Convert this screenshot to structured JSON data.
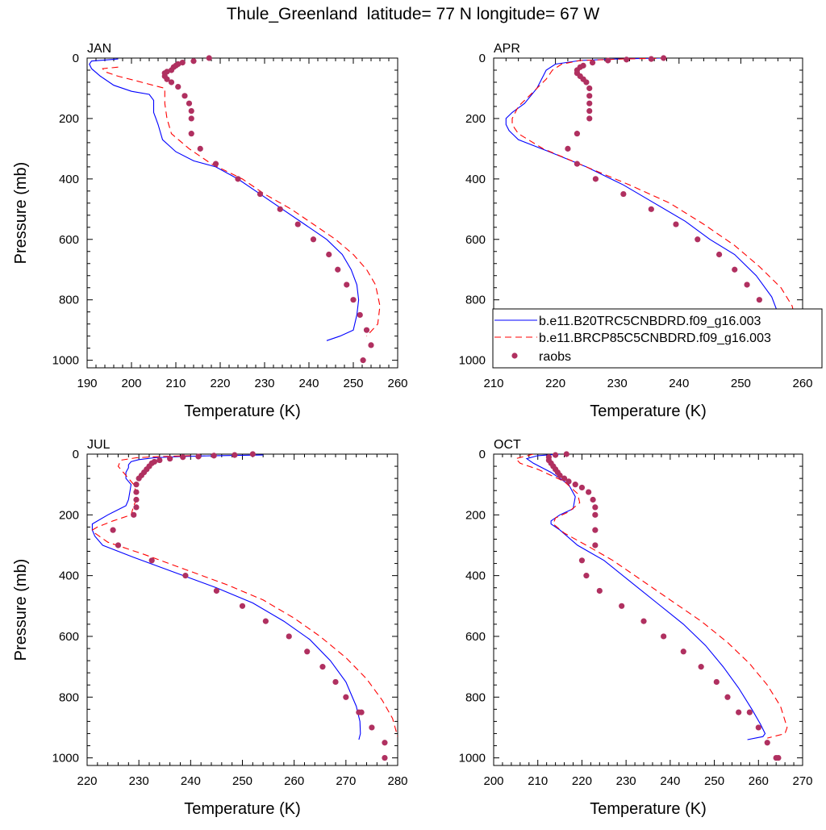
{
  "figure": {
    "title": "Thule_Greenland  latitude= 77 N longitude= 67 W"
  },
  "legend": {
    "placement": "inside APR panel, lower right",
    "entries": [
      {
        "label": "b.e11.B20TRC5CNBDRD.f09_g16.003",
        "style": "solid",
        "color": "#0000ff"
      },
      {
        "label": "b.e11.BRCP85C5CNBDRD.f09_g16.003",
        "style": "dashed",
        "color": "#ff0000"
      },
      {
        "label": "raobs",
        "style": "marker",
        "color": "#b03060"
      }
    ]
  },
  "chart_data": [
    {
      "type": "line",
      "panel": "JAN",
      "title": "JAN",
      "xlabel": "Temperature (K)",
      "ylabel": "Pressure (mb)",
      "xlim": [
        190,
        260
      ],
      "ylim": [
        1025,
        0
      ],
      "xticks": [
        190,
        200,
        210,
        220,
        230,
        240,
        250,
        260
      ],
      "yticks": [
        0,
        200,
        400,
        600,
        800,
        1000
      ],
      "grid": false,
      "series": [
        {
          "name": "b.e11.B20TRC5CNBDRD.f09_g16.003",
          "style": "solid",
          "color": "#0000ff",
          "x": [
            197,
            191,
            190.5,
            191,
            193,
            196,
            200,
            204,
            205,
            205,
            205.5,
            206,
            207,
            210,
            214,
            219,
            224,
            229,
            234,
            239,
            244,
            247.5,
            249.5,
            250.8,
            251.2,
            250.8,
            250,
            247,
            244
          ],
          "y": [
            3,
            10,
            20,
            35,
            60,
            90,
            110,
            120,
            140,
            180,
            200,
            220,
            270,
            310,
            340,
            360,
            400,
            450,
            500,
            550,
            600,
            650,
            700,
            750,
            800,
            850,
            900,
            920,
            935
          ]
        },
        {
          "name": "b.e11.BRCP85C5CNBDRD.f09_g16.003",
          "style": "dashed",
          "color": "#ff0000",
          "x": [
            197,
            193.5,
            194,
            197,
            201,
            207.5,
            207.5,
            208,
            209,
            213,
            218,
            225,
            230,
            236,
            241,
            246,
            250,
            253,
            255,
            256,
            255.5,
            253
          ],
          "y": [
            30,
            35,
            45,
            60,
            75,
            100,
            150,
            200,
            250,
            300,
            350,
            400,
            450,
            500,
            550,
            600,
            650,
            700,
            750,
            820,
            880,
            920
          ]
        },
        {
          "name": "raobs",
          "style": "marker",
          "color": "#b03060",
          "x": [
            217.5,
            214,
            211.5,
            210.5,
            210,
            209.5,
            209,
            208,
            207.5,
            207.5,
            208,
            209,
            210.5,
            212,
            213,
            213.5,
            213.5,
            213.5,
            215.5,
            219,
            224,
            229,
            233.5,
            237.5,
            241,
            244.5,
            246.5,
            248.5,
            250,
            251.5,
            253,
            254,
            252.2
          ],
          "y": [
            0,
            10,
            15,
            20,
            25,
            30,
            40,
            45,
            50,
            60,
            70,
            80,
            95,
            125,
            150,
            175,
            200,
            250,
            300,
            350,
            400,
            450,
            500,
            550,
            600,
            650,
            700,
            750,
            800,
            850,
            900,
            950,
            1000
          ]
        }
      ]
    },
    {
      "type": "line",
      "panel": "APR",
      "title": "APR",
      "xlabel": "Temperature (K)",
      "ylabel": "",
      "xlim": [
        210,
        260
      ],
      "ylim": [
        1025,
        0
      ],
      "xticks": [
        210,
        220,
        230,
        240,
        250,
        260
      ],
      "yticks": [
        0,
        200,
        400,
        600,
        800,
        1000
      ],
      "grid": false,
      "series": [
        {
          "name": "b.e11.B20TRC5CNBDRD.f09_g16.003",
          "style": "solid",
          "color": "#0000ff",
          "x": [
            237,
            230,
            224,
            220,
            218.5,
            218,
            217,
            215,
            213,
            212,
            212,
            212.5,
            214,
            219,
            225,
            231,
            236,
            241,
            245,
            249,
            252.5,
            255,
            256.3,
            256,
            254
          ],
          "y": [
            0,
            3,
            8,
            20,
            40,
            60,
            100,
            150,
            180,
            200,
            220,
            240,
            270,
            310,
            360,
            420,
            480,
            540,
            600,
            650,
            720,
            790,
            860,
            910,
            935
          ]
        },
        {
          "name": "b.e11.BRCP85C5CNBDRD.f09_g16.003",
          "style": "dashed",
          "color": "#ff0000",
          "x": [
            238,
            231,
            224,
            221,
            219.5,
            218.5,
            216,
            214,
            213,
            213,
            214,
            218,
            225,
            232,
            238.5,
            244,
            249,
            253,
            256.5,
            258.3,
            259
          ],
          "y": [
            0,
            3,
            8,
            20,
            40,
            70,
            120,
            160,
            200,
            220,
            250,
            300,
            360,
            420,
            480,
            550,
            620,
            690,
            760,
            820,
            880
          ]
        },
        {
          "name": "raobs",
          "style": "marker",
          "color": "#b03060",
          "x": [
            237.5,
            235.5,
            231.5,
            228.5,
            226,
            224.5,
            224,
            223.5,
            223.5,
            224,
            224.5,
            225,
            225.5,
            225.5,
            225.5,
            225.5,
            225.5,
            223.5,
            222,
            223.5,
            226.5,
            231,
            235.5,
            239.5,
            243,
            246.5,
            249,
            251,
            253,
            255.5,
            256.5,
            257,
            257
          ],
          "y": [
            0,
            3,
            5,
            8,
            15,
            25,
            30,
            40,
            50,
            60,
            70,
            80,
            100,
            125,
            150,
            175,
            200,
            250,
            300,
            350,
            400,
            450,
            500,
            550,
            600,
            650,
            700,
            750,
            800,
            850,
            900,
            950,
            1000
          ]
        }
      ]
    },
    {
      "type": "line",
      "panel": "JUL",
      "title": "JUL",
      "xlabel": "Temperature (K)",
      "ylabel": "Pressure (mb)",
      "xlim": [
        220,
        280
      ],
      "ylim": [
        1025,
        0
      ],
      "xticks": [
        220,
        230,
        240,
        250,
        260,
        270,
        280
      ],
      "yticks": [
        0,
        200,
        400,
        600,
        800,
        1000
      ],
      "grid": false,
      "series": [
        {
          "name": "b.e11.B20TRC5CNBDRD.f09_g16.003",
          "style": "solid",
          "color": "#0000ff",
          "x": [
            254,
            245,
            238,
            233,
            230,
            228.5,
            228,
            228,
            227.5,
            227.5,
            228.5,
            228,
            227.5,
            224,
            221,
            221,
            221.5,
            223,
            229,
            237,
            245,
            252,
            258,
            263,
            267,
            270,
            272,
            272.7,
            272.8,
            272.5
          ],
          "y": [
            3,
            5,
            8,
            12,
            18,
            25,
            35,
            45,
            60,
            80,
            100,
            150,
            170,
            200,
            230,
            250,
            270,
            300,
            340,
            390,
            440,
            490,
            550,
            610,
            680,
            750,
            830,
            880,
            920,
            940
          ]
        },
        {
          "name": "b.e11.BRCP85C5CNBDRD.f09_g16.003",
          "style": "dashed",
          "color": "#ff0000",
          "x": [
            240,
            234,
            229.5,
            226.5,
            226,
            227.5,
            229,
            229.5,
            229.5,
            229,
            228.5,
            225,
            222,
            221,
            221.5,
            224,
            231,
            239,
            247,
            254,
            260,
            265,
            270,
            274,
            277,
            279,
            280
          ],
          "y": [
            5,
            8,
            12,
            20,
            40,
            70,
            100,
            130,
            150,
            170,
            200,
            220,
            240,
            250,
            260,
            290,
            330,
            380,
            430,
            480,
            540,
            600,
            670,
            740,
            810,
            870,
            930
          ]
        },
        {
          "name": "raobs",
          "style": "marker",
          "color": "#b03060",
          "x": [
            252,
            248.5,
            244.5,
            241.5,
            238.5,
            236,
            234,
            233,
            232.5,
            232,
            231.5,
            231,
            230.5,
            230,
            229.5,
            229.5,
            229.5,
            229.5,
            229,
            225,
            226,
            232.5,
            239,
            245,
            250,
            254.5,
            259,
            262.5,
            265.5,
            268,
            270,
            272.5,
            273,
            275,
            277.5,
            277.5
          ],
          "y": [
            0,
            3,
            5,
            8,
            10,
            15,
            20,
            25,
            30,
            40,
            50,
            60,
            70,
            80,
            100,
            125,
            150,
            175,
            200,
            250,
            300,
            350,
            400,
            450,
            500,
            550,
            600,
            650,
            700,
            750,
            800,
            850,
            850,
            900,
            950,
            1000
          ]
        }
      ]
    },
    {
      "type": "line",
      "panel": "OCT",
      "title": "OCT",
      "xlabel": "Temperature (K)",
      "ylabel": "",
      "xlim": [
        200,
        270
      ],
      "ylim": [
        1025,
        0
      ],
      "xticks": [
        200,
        210,
        220,
        230,
        240,
        250,
        260,
        270
      ],
      "yticks": [
        0,
        200,
        400,
        600,
        800,
        1000
      ],
      "grid": false,
      "series": [
        {
          "name": "b.e11.B20TRC5CNBDRD.f09_g16.003",
          "style": "solid",
          "color": "#0000ff",
          "x": [
            215,
            210,
            207.5,
            209,
            213,
            217,
            218.5,
            218,
            215,
            213,
            213,
            215,
            219,
            225,
            231,
            237,
            243,
            248,
            252,
            255.5,
            258.5,
            260.5,
            261.5,
            261,
            257.5
          ],
          "y": [
            0,
            5,
            15,
            30,
            60,
            100,
            140,
            180,
            200,
            220,
            230,
            250,
            300,
            350,
            420,
            490,
            560,
            630,
            700,
            770,
            840,
            890,
            920,
            930,
            940
          ]
        },
        {
          "name": "b.e11.BRCP85C5CNBDRD.f09_g16.003",
          "style": "dashed",
          "color": "#ff0000",
          "x": [
            209,
            205,
            206,
            210,
            216,
            219,
            219.5,
            217,
            214,
            213.5,
            216,
            221,
            227,
            233,
            240,
            247,
            253,
            258,
            262,
            265,
            266.5,
            266,
            262
          ],
          "y": [
            0,
            15,
            30,
            50,
            90,
            130,
            160,
            190,
            210,
            230,
            260,
            300,
            350,
            410,
            480,
            550,
            620,
            690,
            760,
            830,
            900,
            920,
            935
          ]
        },
        {
          "name": "raobs",
          "style": "marker",
          "color": "#b03060",
          "x": [
            216.5,
            214,
            212.5,
            212.5,
            213,
            213.5,
            214,
            214.5,
            215,
            216,
            217,
            218.5,
            220,
            221.5,
            222.5,
            223,
            223,
            223,
            223,
            220,
            221,
            224,
            229,
            234,
            238.5,
            243,
            247,
            250.5,
            253,
            255.5,
            258,
            260,
            262,
            264,
            264.5
          ],
          "y": [
            0,
            3,
            10,
            20,
            30,
            40,
            50,
            60,
            70,
            80,
            90,
            100,
            110,
            125,
            150,
            175,
            200,
            250,
            300,
            350,
            400,
            450,
            500,
            550,
            600,
            650,
            700,
            750,
            800,
            850,
            850,
            900,
            950,
            1000,
            1000
          ]
        }
      ]
    }
  ]
}
